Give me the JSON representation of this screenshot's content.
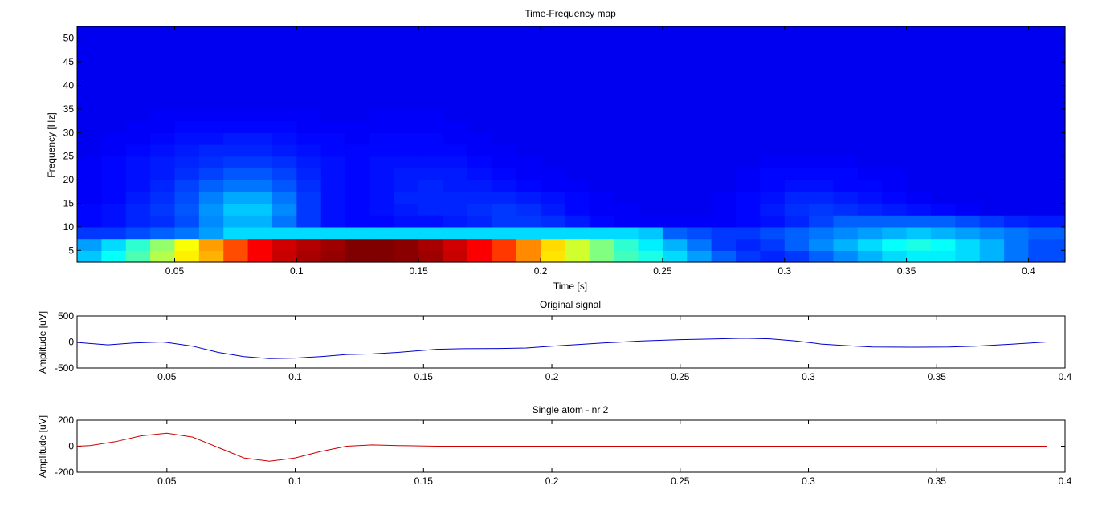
{
  "chart_data": [
    {
      "type": "heatmap",
      "title": "Time-Frequency map",
      "xlabel": "Time [s]",
      "ylabel": "Frequency [Hz]",
      "xlim": [
        0.01,
        0.415
      ],
      "ylim": [
        2.5,
        52.5
      ],
      "xticks": [
        0.05,
        0.1,
        0.15,
        0.2,
        0.25,
        0.3,
        0.35,
        0.4
      ],
      "xtick_labels": [
        "0.05",
        "0.1",
        "0.15",
        "0.2",
        "0.25",
        "0.3",
        "0.35",
        "0.4"
      ],
      "yticks": [
        5,
        10,
        15,
        20,
        25,
        30,
        35,
        40,
        45,
        50
      ],
      "ytick_labels": [
        "5",
        "10",
        "15",
        "20",
        "25",
        "30",
        "35",
        "40",
        "45",
        "50"
      ],
      "colormap": "jet",
      "cell_bounds_note": "",
      "x_edges": [
        0.01,
        0.02,
        0.03,
        0.04,
        0.05,
        0.06,
        0.07,
        0.08,
        0.09,
        0.1,
        0.11,
        0.12,
        0.13,
        0.14,
        0.15,
        0.16,
        0.17,
        0.18,
        0.19,
        0.2,
        0.21,
        0.22,
        0.23,
        0.24,
        0.25,
        0.26,
        0.27,
        0.28,
        0.29,
        0.3,
        0.31,
        0.32,
        0.33,
        0.34,
        0.35,
        0.36,
        0.37,
        0.38,
        0.39,
        0.4,
        0.415
      ],
      "y_edges": [
        2.5,
        5,
        7.5,
        10,
        12.5,
        15,
        17.5,
        20,
        22.5,
        25,
        27.5,
        30,
        32.5,
        35,
        40,
        45,
        52.5
      ],
      "z": [
        [
          0.32,
          0.38,
          0.45,
          0.55,
          0.64,
          0.7,
          0.8,
          0.88,
          0.93,
          0.96,
          0.98,
          1.0,
          1.0,
          0.99,
          0.97,
          0.93,
          0.88,
          0.82,
          0.74,
          0.65,
          0.58,
          0.5,
          0.44,
          0.4,
          0.34,
          0.28,
          0.22,
          0.18,
          0.16,
          0.18,
          0.22,
          0.26,
          0.3,
          0.34,
          0.36,
          0.36,
          0.34,
          0.3,
          0.24,
          0.2
        ],
        [
          0.28,
          0.34,
          0.42,
          0.52,
          0.62,
          0.72,
          0.8,
          0.88,
          0.92,
          0.95,
          0.97,
          1.0,
          1.0,
          0.99,
          0.96,
          0.92,
          0.88,
          0.82,
          0.74,
          0.66,
          0.58,
          0.5,
          0.42,
          0.36,
          0.3,
          0.24,
          0.18,
          0.16,
          0.18,
          0.22,
          0.26,
          0.3,
          0.34,
          0.38,
          0.4,
          0.38,
          0.34,
          0.3,
          0.24,
          0.2
        ],
        [
          0.18,
          0.18,
          0.2,
          0.22,
          0.24,
          0.28,
          0.34,
          0.34,
          0.34,
          0.34,
          0.34,
          0.34,
          0.34,
          0.34,
          0.34,
          0.34,
          0.34,
          0.34,
          0.34,
          0.34,
          0.34,
          0.34,
          0.34,
          0.32,
          0.22,
          0.2,
          0.18,
          0.18,
          0.2,
          0.22,
          0.24,
          0.26,
          0.28,
          0.3,
          0.32,
          0.3,
          0.28,
          0.26,
          0.24,
          0.22
        ],
        [
          0.13,
          0.14,
          0.16,
          0.17,
          0.2,
          0.26,
          0.3,
          0.3,
          0.24,
          0.18,
          0.14,
          0.13,
          0.13,
          0.14,
          0.14,
          0.15,
          0.16,
          0.18,
          0.18,
          0.17,
          0.15,
          0.13,
          0.12,
          0.12,
          0.12,
          0.12,
          0.12,
          0.13,
          0.14,
          0.16,
          0.19,
          0.22,
          0.22,
          0.22,
          0.22,
          0.22,
          0.2,
          0.18,
          0.16,
          0.15
        ],
        [
          0.13,
          0.14,
          0.16,
          0.18,
          0.21,
          0.27,
          0.32,
          0.32,
          0.26,
          0.18,
          0.14,
          0.13,
          0.14,
          0.15,
          0.16,
          0.16,
          0.17,
          0.18,
          0.17,
          0.15,
          0.13,
          0.12,
          0.12,
          0.11,
          0.11,
          0.11,
          0.12,
          0.13,
          0.15,
          0.17,
          0.18,
          0.17,
          0.16,
          0.15,
          0.14,
          0.13,
          0.12,
          0.11,
          0.11,
          0.11
        ],
        [
          0.12,
          0.13,
          0.15,
          0.17,
          0.2,
          0.25,
          0.29,
          0.29,
          0.24,
          0.18,
          0.14,
          0.13,
          0.14,
          0.16,
          0.16,
          0.16,
          0.16,
          0.16,
          0.15,
          0.14,
          0.13,
          0.12,
          0.11,
          0.11,
          0.11,
          0.11,
          0.12,
          0.13,
          0.14,
          0.16,
          0.16,
          0.15,
          0.14,
          0.13,
          0.12,
          0.11,
          0.11,
          0.11,
          0.11,
          0.11
        ],
        [
          0.12,
          0.13,
          0.14,
          0.16,
          0.19,
          0.22,
          0.24,
          0.24,
          0.21,
          0.17,
          0.14,
          0.13,
          0.14,
          0.15,
          0.16,
          0.15,
          0.15,
          0.14,
          0.13,
          0.12,
          0.12,
          0.11,
          0.11,
          0.11,
          0.11,
          0.11,
          0.11,
          0.12,
          0.13,
          0.14,
          0.14,
          0.13,
          0.13,
          0.12,
          0.11,
          0.11,
          0.11,
          0.11,
          0.11,
          0.11
        ],
        [
          0.12,
          0.13,
          0.14,
          0.15,
          0.17,
          0.19,
          0.21,
          0.21,
          0.19,
          0.16,
          0.14,
          0.13,
          0.14,
          0.15,
          0.15,
          0.15,
          0.14,
          0.13,
          0.12,
          0.12,
          0.11,
          0.11,
          0.11,
          0.11,
          0.11,
          0.11,
          0.11,
          0.12,
          0.13,
          0.13,
          0.13,
          0.13,
          0.12,
          0.12,
          0.11,
          0.11,
          0.11,
          0.11,
          0.11,
          0.11
        ],
        [
          0.12,
          0.13,
          0.14,
          0.15,
          0.16,
          0.17,
          0.18,
          0.18,
          0.17,
          0.15,
          0.14,
          0.13,
          0.14,
          0.14,
          0.14,
          0.14,
          0.13,
          0.12,
          0.12,
          0.11,
          0.11,
          0.11,
          0.11,
          0.11,
          0.11,
          0.11,
          0.11,
          0.11,
          0.12,
          0.12,
          0.12,
          0.12,
          0.11,
          0.11,
          0.11,
          0.11,
          0.11,
          0.11,
          0.11,
          0.11
        ],
        [
          0.11,
          0.12,
          0.13,
          0.14,
          0.15,
          0.16,
          0.16,
          0.16,
          0.15,
          0.14,
          0.13,
          0.13,
          0.13,
          0.13,
          0.13,
          0.13,
          0.12,
          0.12,
          0.11,
          0.11,
          0.11,
          0.11,
          0.11,
          0.11,
          0.11,
          0.11,
          0.11,
          0.11,
          0.11,
          0.11,
          0.11,
          0.11,
          0.11,
          0.11,
          0.11,
          0.11,
          0.11,
          0.11,
          0.11,
          0.11
        ],
        [
          0.11,
          0.12,
          0.12,
          0.13,
          0.14,
          0.14,
          0.15,
          0.15,
          0.14,
          0.13,
          0.13,
          0.12,
          0.13,
          0.13,
          0.13,
          0.12,
          0.12,
          0.11,
          0.11,
          0.11,
          0.11,
          0.11,
          0.11,
          0.11,
          0.11,
          0.11,
          0.11,
          0.11,
          0.11,
          0.11,
          0.11,
          0.11,
          0.11,
          0.11,
          0.11,
          0.11,
          0.11,
          0.11,
          0.11,
          0.11
        ],
        [
          0.11,
          0.11,
          0.12,
          0.12,
          0.13,
          0.13,
          0.13,
          0.13,
          0.13,
          0.12,
          0.12,
          0.12,
          0.12,
          0.12,
          0.12,
          0.12,
          0.11,
          0.11,
          0.11,
          0.11,
          0.11,
          0.11,
          0.11,
          0.11,
          0.11,
          0.11,
          0.11,
          0.11,
          0.11,
          0.11,
          0.11,
          0.11,
          0.11,
          0.11,
          0.11,
          0.11,
          0.11,
          0.11,
          0.11,
          0.11
        ],
        [
          0.11,
          0.11,
          0.11,
          0.12,
          0.12,
          0.12,
          0.12,
          0.12,
          0.12,
          0.12,
          0.11,
          0.11,
          0.12,
          0.12,
          0.12,
          0.11,
          0.11,
          0.11,
          0.11,
          0.11,
          0.11,
          0.11,
          0.11,
          0.11,
          0.11,
          0.11,
          0.11,
          0.11,
          0.11,
          0.11,
          0.11,
          0.11,
          0.11,
          0.11,
          0.11,
          0.11,
          0.11,
          0.11,
          0.11,
          0.11
        ],
        [
          0.11,
          0.11,
          0.11,
          0.11,
          0.11,
          0.11,
          0.11,
          0.11,
          0.11,
          0.11,
          0.11,
          0.11,
          0.11,
          0.11,
          0.11,
          0.11,
          0.11,
          0.11,
          0.11,
          0.11,
          0.11,
          0.11,
          0.11,
          0.11,
          0.11,
          0.11,
          0.11,
          0.11,
          0.11,
          0.11,
          0.11,
          0.11,
          0.11,
          0.11,
          0.11,
          0.11,
          0.11,
          0.11,
          0.11,
          0.11
        ],
        [
          0.11,
          0.11,
          0.11,
          0.11,
          0.11,
          0.11,
          0.11,
          0.11,
          0.11,
          0.11,
          0.11,
          0.11,
          0.11,
          0.11,
          0.11,
          0.11,
          0.11,
          0.11,
          0.11,
          0.11,
          0.11,
          0.11,
          0.11,
          0.11,
          0.11,
          0.11,
          0.11,
          0.11,
          0.11,
          0.11,
          0.11,
          0.11,
          0.11,
          0.11,
          0.11,
          0.11,
          0.11,
          0.11,
          0.11,
          0.11
        ],
        [
          0.11,
          0.11,
          0.11,
          0.11,
          0.11,
          0.11,
          0.11,
          0.11,
          0.11,
          0.11,
          0.11,
          0.11,
          0.11,
          0.11,
          0.11,
          0.11,
          0.11,
          0.11,
          0.11,
          0.11,
          0.11,
          0.11,
          0.11,
          0.11,
          0.11,
          0.11,
          0.11,
          0.11,
          0.11,
          0.11,
          0.11,
          0.11,
          0.11,
          0.11,
          0.11,
          0.11,
          0.11,
          0.11,
          0.11,
          0.11
        ]
      ]
    },
    {
      "type": "line",
      "title": "Original signal",
      "xlabel": "",
      "ylabel": "Amplitude [uV]",
      "xlim": [
        0.015,
        0.4
      ],
      "ylim": [
        -500,
        500
      ],
      "xticks": [
        0.05,
        0.1,
        0.15,
        0.2,
        0.25,
        0.3,
        0.35,
        0.4
      ],
      "xtick_labels": [
        "0.05",
        "0.1",
        "0.15",
        "0.2",
        "0.25",
        "0.3",
        "0.35",
        "0.4"
      ],
      "yticks": [
        -500,
        0,
        500
      ],
      "ytick_labels": [
        "-500",
        "0",
        "500"
      ],
      "color": "#0000cc",
      "x": [
        0.015,
        0.027,
        0.037,
        0.048,
        0.05,
        0.06,
        0.07,
        0.08,
        0.09,
        0.1,
        0.11,
        0.12,
        0.13,
        0.14,
        0.155,
        0.165,
        0.18,
        0.19,
        0.2,
        0.21,
        0.22,
        0.235,
        0.25,
        0.265,
        0.275,
        0.285,
        0.295,
        0.305,
        0.315,
        0.325,
        0.34,
        0.355,
        0.365,
        0.38,
        0.393
      ],
      "y": [
        -10,
        -55,
        -20,
        0,
        -10,
        -80,
        -200,
        -280,
        -320,
        -310,
        -280,
        -240,
        -230,
        -200,
        -140,
        -130,
        -125,
        -115,
        -80,
        -50,
        -20,
        20,
        45,
        60,
        70,
        60,
        20,
        -40,
        -70,
        -95,
        -100,
        -95,
        -80,
        -40,
        0
      ]
    },
    {
      "type": "line",
      "title": "Single atom - nr 2",
      "xlabel": "",
      "ylabel": "Amplitude [uV]",
      "xlim": [
        0.015,
        0.4
      ],
      "ylim": [
        -200,
        200
      ],
      "xticks": [
        0.05,
        0.1,
        0.15,
        0.2,
        0.25,
        0.3,
        0.35,
        0.4
      ],
      "xtick_labels": [
        "0.05",
        "0.1",
        "0.15",
        "0.2",
        "0.25",
        "0.3",
        "0.35",
        "0.4"
      ],
      "yticks": [
        -200,
        0,
        200
      ],
      "ytick_labels": [
        "-200",
        "0",
        "200"
      ],
      "color": "#cc0000",
      "x": [
        0.015,
        0.02,
        0.03,
        0.04,
        0.05,
        0.06,
        0.07,
        0.08,
        0.09,
        0.1,
        0.11,
        0.12,
        0.13,
        0.14,
        0.155,
        0.17,
        0.2,
        0.25,
        0.3,
        0.35,
        0.393
      ],
      "y": [
        0,
        5,
        35,
        80,
        100,
        70,
        -10,
        -90,
        -115,
        -90,
        -40,
        0,
        10,
        5,
        0,
        0,
        0,
        0,
        0,
        0,
        0
      ]
    }
  ]
}
